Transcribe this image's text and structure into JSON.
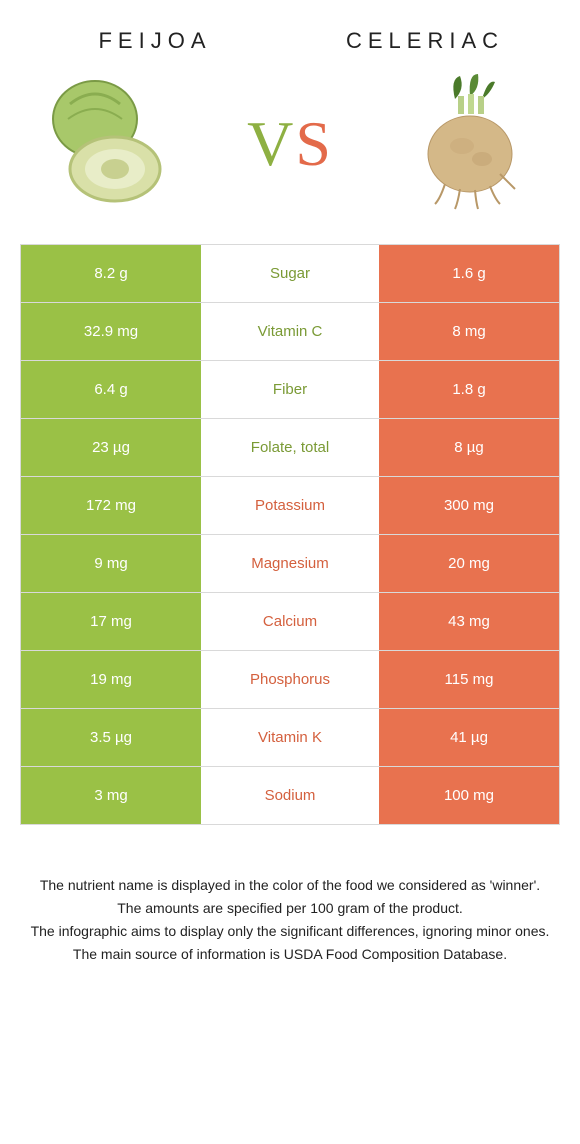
{
  "colors": {
    "left": "#9ac146",
    "right": "#e8724f",
    "left_text": "#7a9a35",
    "right_text": "#d4603e"
  },
  "header": {
    "left_title": "FEIJOA",
    "right_title": "CELERIAC",
    "vs_v": "V",
    "vs_s": "S"
  },
  "rows": [
    {
      "left": "8.2 g",
      "label": "Sugar",
      "right": "1.6 g",
      "winner": "left"
    },
    {
      "left": "32.9 mg",
      "label": "Vitamin C",
      "right": "8 mg",
      "winner": "left"
    },
    {
      "left": "6.4 g",
      "label": "Fiber",
      "right": "1.8 g",
      "winner": "left"
    },
    {
      "left": "23 µg",
      "label": "Folate, total",
      "right": "8 µg",
      "winner": "left"
    },
    {
      "left": "172 mg",
      "label": "Potassium",
      "right": "300 mg",
      "winner": "right"
    },
    {
      "left": "9 mg",
      "label": "Magnesium",
      "right": "20 mg",
      "winner": "right"
    },
    {
      "left": "17 mg",
      "label": "Calcium",
      "right": "43 mg",
      "winner": "right"
    },
    {
      "left": "19 mg",
      "label": "Phosphorus",
      "right": "115 mg",
      "winner": "right"
    },
    {
      "left": "3.5 µg",
      "label": "Vitamin K",
      "right": "41 µg",
      "winner": "right"
    },
    {
      "left": "3 mg",
      "label": "Sodium",
      "right": "100 mg",
      "winner": "right"
    }
  ],
  "footer": {
    "line1": "The nutrient name is displayed in the color of the food we considered as 'winner'.",
    "line2": "The amounts are specified per 100 gram of the product.",
    "line3": "The infographic aims to display only the significant differences, ignoring minor ones.",
    "line4": "The main source of information is USDA Food Composition Database."
  }
}
